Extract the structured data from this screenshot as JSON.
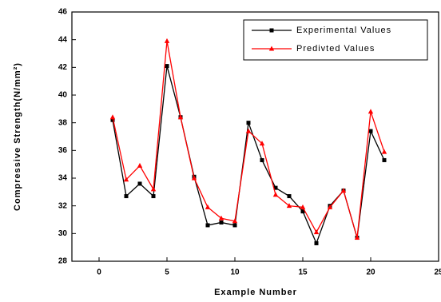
{
  "chart_data": {
    "type": "line",
    "x_label": "Example Number",
    "y_label": "Compressive Strength(N/mm²)",
    "x": [
      1,
      2,
      3,
      4,
      5,
      6,
      7,
      8,
      9,
      10,
      11,
      12,
      13,
      14,
      15,
      16,
      17,
      18,
      19,
      20,
      21
    ],
    "series": [
      {
        "name": "Experimental Values",
        "color": "#000000",
        "marker": "square",
        "values": [
          38.2,
          32.7,
          33.6,
          32.7,
          42.1,
          38.4,
          34.1,
          30.6,
          30.8,
          30.6,
          38.0,
          35.3,
          33.3,
          32.7,
          31.6,
          29.3,
          32.0,
          33.1,
          29.7,
          37.4,
          35.3
        ]
      },
      {
        "name": "Predivted Values",
        "color": "#ff0000",
        "marker": "triangle",
        "values": [
          38.4,
          33.9,
          34.9,
          33.2,
          43.9,
          38.4,
          34.0,
          31.9,
          31.1,
          30.9,
          37.4,
          36.5,
          32.8,
          32.0,
          31.9,
          30.1,
          31.9,
          33.1,
          29.7,
          38.8,
          35.9
        ]
      }
    ],
    "xlim": [
      -2,
      25
    ],
    "xticks": [
      0,
      5,
      10,
      15,
      20,
      25
    ],
    "ylim": [
      28,
      46
    ],
    "yticks": [
      28,
      30,
      32,
      34,
      36,
      38,
      40,
      42,
      44,
      46
    ],
    "legend": "upper right",
    "grid": false
  }
}
